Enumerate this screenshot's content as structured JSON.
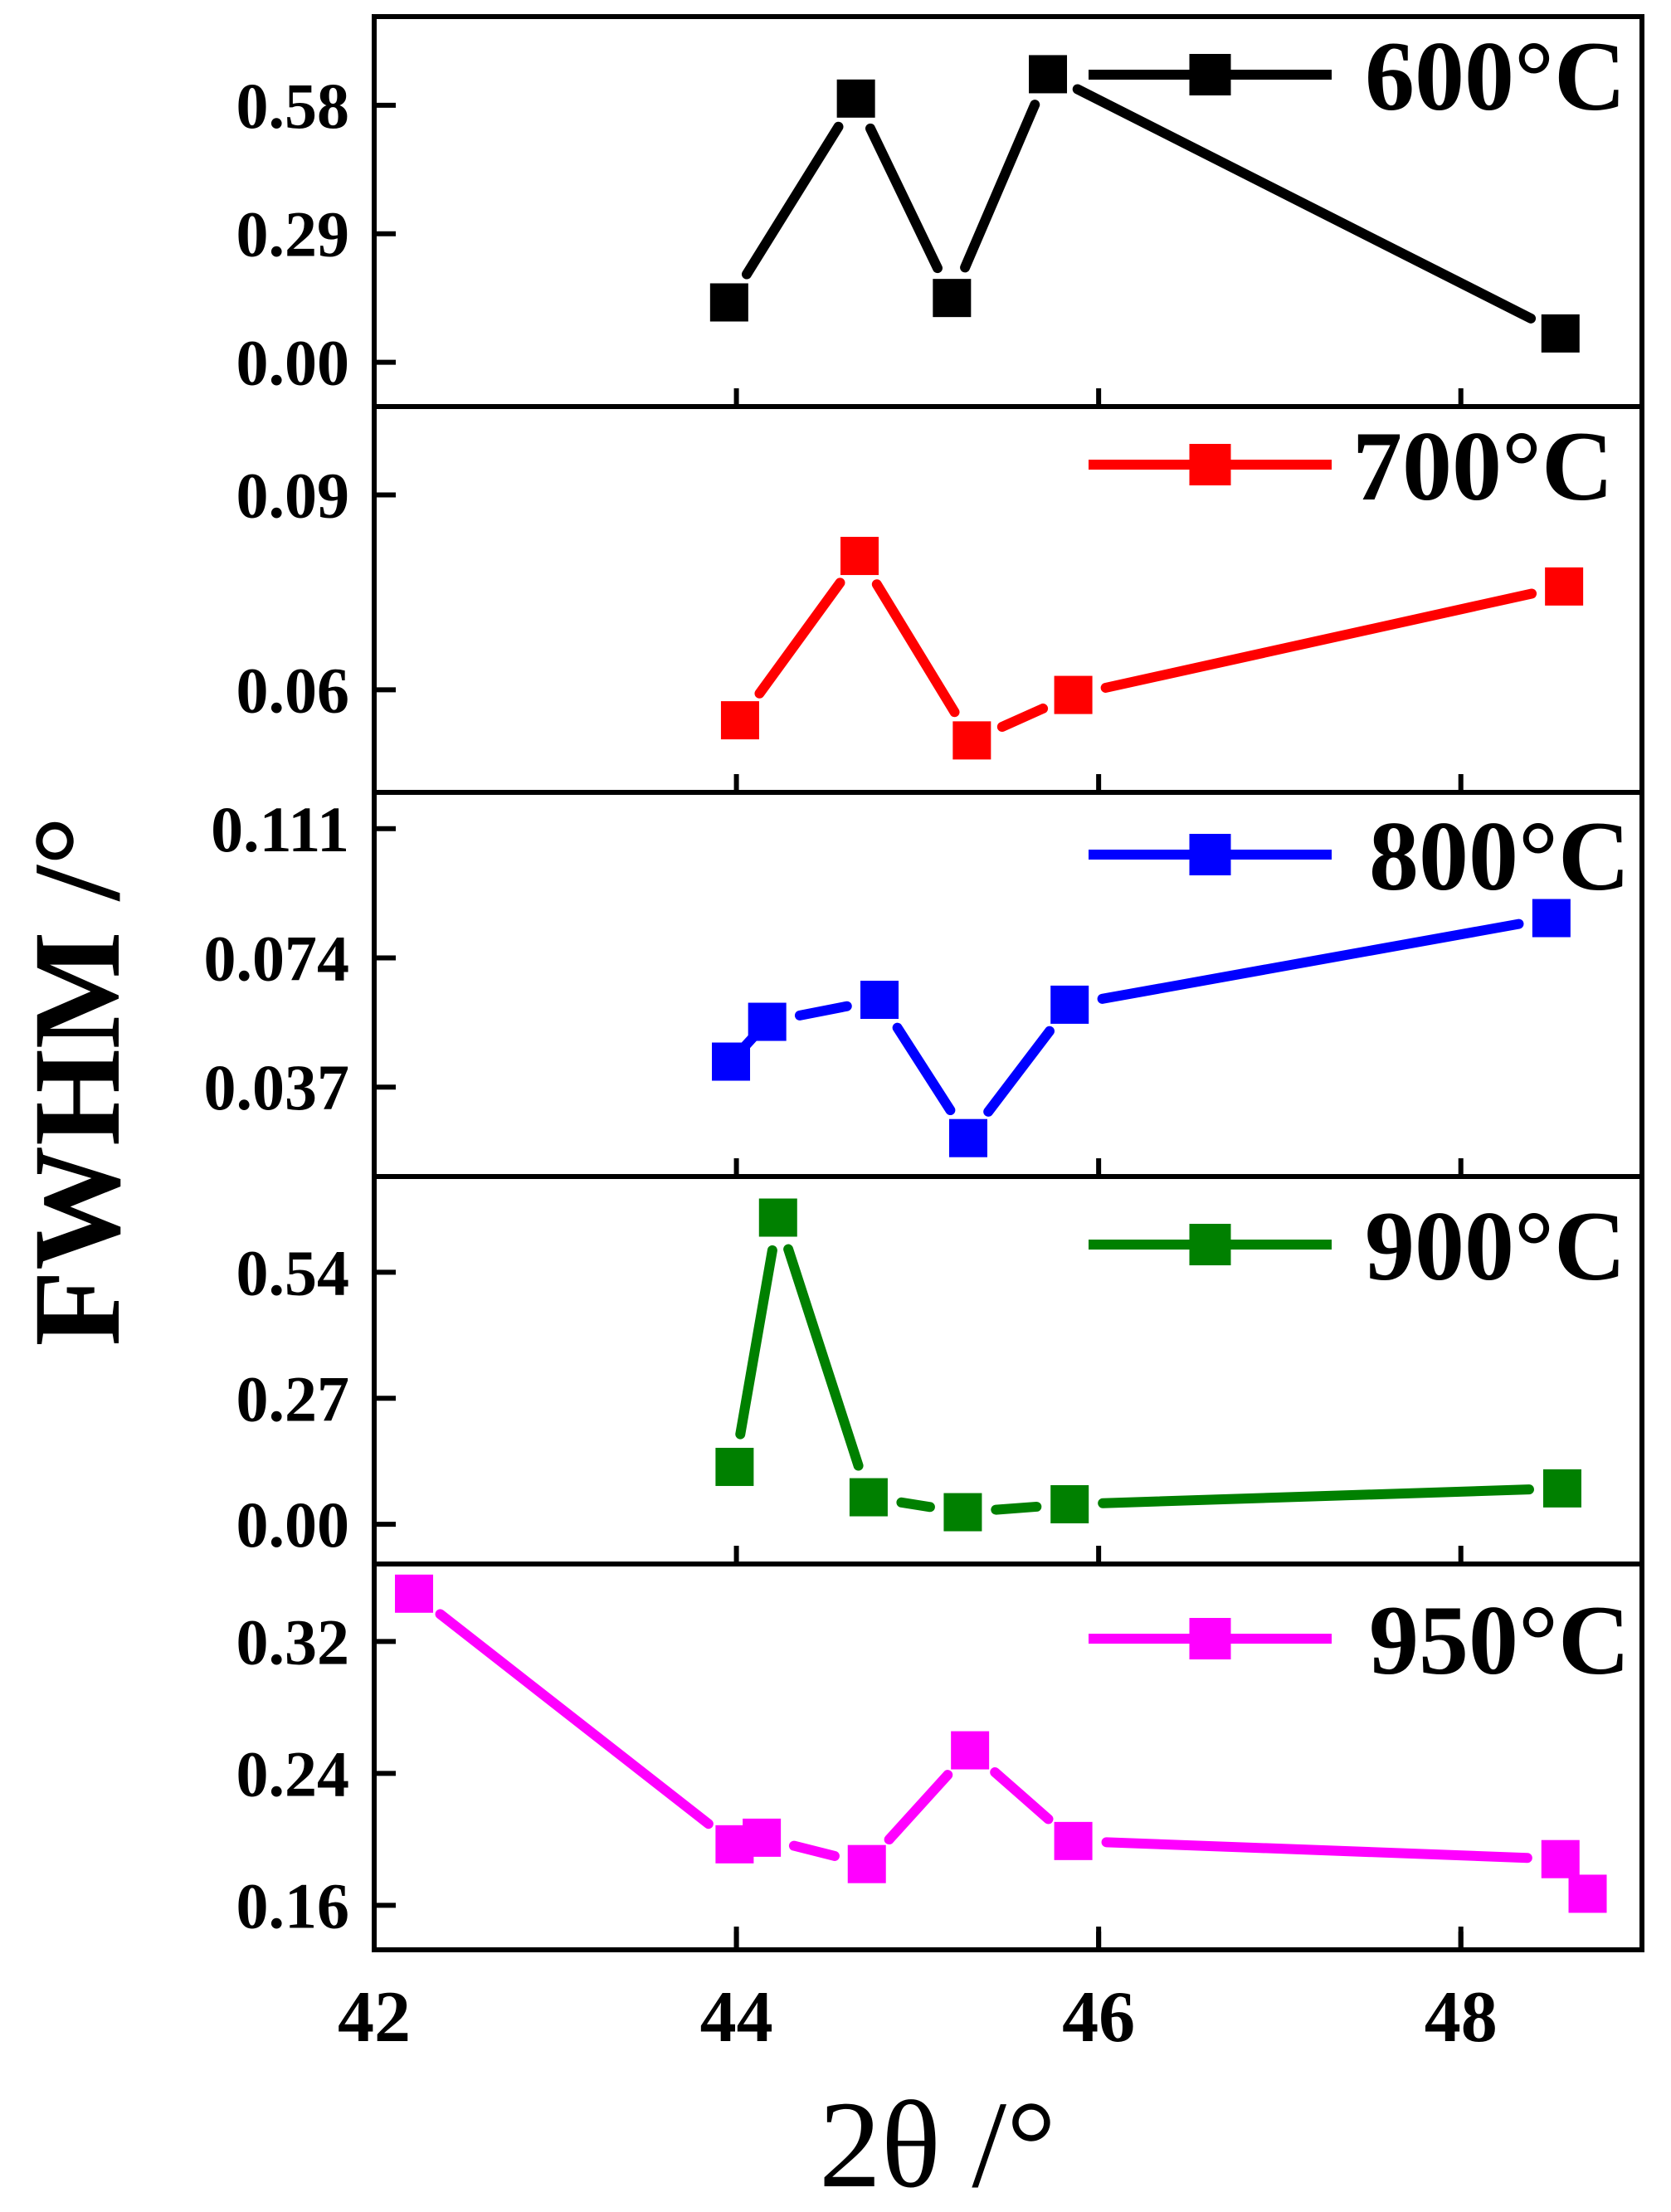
{
  "x_axis": {
    "label": "2θ /°",
    "range": [
      42,
      49
    ],
    "ticks": [
      {
        "value": 42,
        "label": "42"
      },
      {
        "value": 44,
        "label": "44"
      },
      {
        "value": 46,
        "label": "46"
      },
      {
        "value": 48,
        "label": "48"
      }
    ]
  },
  "y_axis_label": "FWHM /°",
  "chart_data": [
    {
      "type": "line",
      "series_name": "600°C",
      "color": "#000000",
      "ylim": [
        -0.1,
        0.78
      ],
      "y_ticks": [
        {
          "value": 0.0,
          "label": "0.00"
        },
        {
          "value": 0.29,
          "label": "0.29"
        },
        {
          "value": 0.58,
          "label": "0.58"
        }
      ],
      "points": [
        {
          "x": 43.96,
          "y": 0.135
        },
        {
          "x": 44.66,
          "y": 0.595
        },
        {
          "x": 45.19,
          "y": 0.145
        },
        {
          "x": 45.72,
          "y": 0.65
        },
        {
          "x": 48.55,
          "y": 0.065
        }
      ]
    },
    {
      "type": "line",
      "series_name": "700°C",
      "color": "#ff0000",
      "ylim": [
        0.0442,
        0.1036
      ],
      "y_ticks": [
        {
          "value": 0.06,
          "label": "0.06"
        },
        {
          "value": 0.09,
          "label": "0.09"
        }
      ],
      "points": [
        {
          "x": 44.02,
          "y": 0.0553
        },
        {
          "x": 44.68,
          "y": 0.0806
        },
        {
          "x": 45.3,
          "y": 0.0522
        },
        {
          "x": 45.86,
          "y": 0.0592
        },
        {
          "x": 48.57,
          "y": 0.0759
        }
      ]
    },
    {
      "type": "line",
      "series_name": "800°C",
      "color": "#0000ff",
      "ylim": [
        0.0114,
        0.1214
      ],
      "y_ticks": [
        {
          "value": 0.037,
          "label": "0.037"
        },
        {
          "value": 0.074,
          "label": "0.074"
        },
        {
          "value": 0.111,
          "label": "0.111"
        }
      ],
      "points": [
        {
          "x": 43.97,
          "y": 0.0443
        },
        {
          "x": 44.17,
          "y": 0.0557
        },
        {
          "x": 44.79,
          "y": 0.062
        },
        {
          "x": 45.28,
          "y": 0.0224
        },
        {
          "x": 45.84,
          "y": 0.0606
        },
        {
          "x": 48.5,
          "y": 0.0854
        }
      ]
    },
    {
      "type": "line",
      "series_name": "900°C",
      "color": "#008000",
      "ylim": [
        -0.085,
        0.745
      ],
      "y_ticks": [
        {
          "value": 0.0,
          "label": "0.00"
        },
        {
          "value": 0.27,
          "label": "0.27"
        },
        {
          "value": 0.54,
          "label": "0.54"
        }
      ],
      "points": [
        {
          "x": 43.99,
          "y": 0.123
        },
        {
          "x": 44.23,
          "y": 0.657
        },
        {
          "x": 44.73,
          "y": 0.058
        },
        {
          "x": 45.25,
          "y": 0.026
        },
        {
          "x": 45.84,
          "y": 0.043
        },
        {
          "x": 48.56,
          "y": 0.077
        }
      ]
    },
    {
      "type": "line",
      "series_name": "950°C",
      "color": "#ff00ff",
      "ylim": [
        0.133,
        0.367
      ],
      "y_ticks": [
        {
          "value": 0.16,
          "label": "0.16"
        },
        {
          "value": 0.24,
          "label": "0.24"
        },
        {
          "value": 0.32,
          "label": "0.32"
        }
      ],
      "points": [
        {
          "x": 42.22,
          "y": 0.349
        },
        {
          "x": 43.99,
          "y": 0.197
        },
        {
          "x": 44.14,
          "y": 0.201
        },
        {
          "x": 44.72,
          "y": 0.185
        },
        {
          "x": 45.29,
          "y": 0.254
        },
        {
          "x": 45.86,
          "y": 0.199
        },
        {
          "x": 48.55,
          "y": 0.188
        },
        {
          "x": 48.7,
          "y": 0.167
        }
      ]
    }
  ]
}
